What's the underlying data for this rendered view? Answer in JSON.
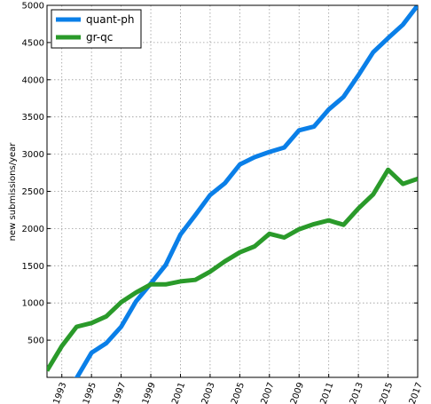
{
  "chart_data": {
    "type": "line",
    "xlabel": "",
    "ylabel": "new submissions/year",
    "xlim": [
      1992,
      2017
    ],
    "ylim": [
      0,
      5000
    ],
    "grid": true,
    "legend_position": "top-left",
    "x_ticks": [
      1993,
      1995,
      1997,
      1999,
      2001,
      2003,
      2005,
      2007,
      2009,
      2011,
      2013,
      2015,
      2017
    ],
    "y_ticks": [
      500,
      1000,
      1500,
      2000,
      2500,
      3000,
      3500,
      4000,
      4500,
      5000
    ],
    "x": [
      1992,
      1993,
      1994,
      1995,
      1996,
      1997,
      1998,
      1999,
      2000,
      2001,
      2002,
      2003,
      2004,
      2005,
      2006,
      2007,
      2008,
      2009,
      2010,
      2011,
      2012,
      2013,
      2014,
      2015,
      2016,
      2017
    ],
    "series": [
      {
        "name": "quant-ph",
        "color": "#0a7fe8",
        "values": [
          null,
          -150,
          -10,
          330,
          460,
          680,
          1020,
          1260,
          1510,
          1920,
          2180,
          2450,
          2610,
          2860,
          2960,
          3030,
          3090,
          3320,
          3370,
          3600,
          3770,
          4060,
          4370,
          4560,
          4740,
          5000
        ]
      },
      {
        "name": "gr-qc",
        "color": "#2a9a2a",
        "values": [
          90,
          420,
          680,
          730,
          820,
          1010,
          1140,
          1250,
          1250,
          1290,
          1310,
          1420,
          1560,
          1680,
          1760,
          1930,
          1880,
          1990,
          2060,
          2110,
          2050,
          2270,
          2460,
          2790,
          2600,
          2670
        ]
      }
    ]
  }
}
